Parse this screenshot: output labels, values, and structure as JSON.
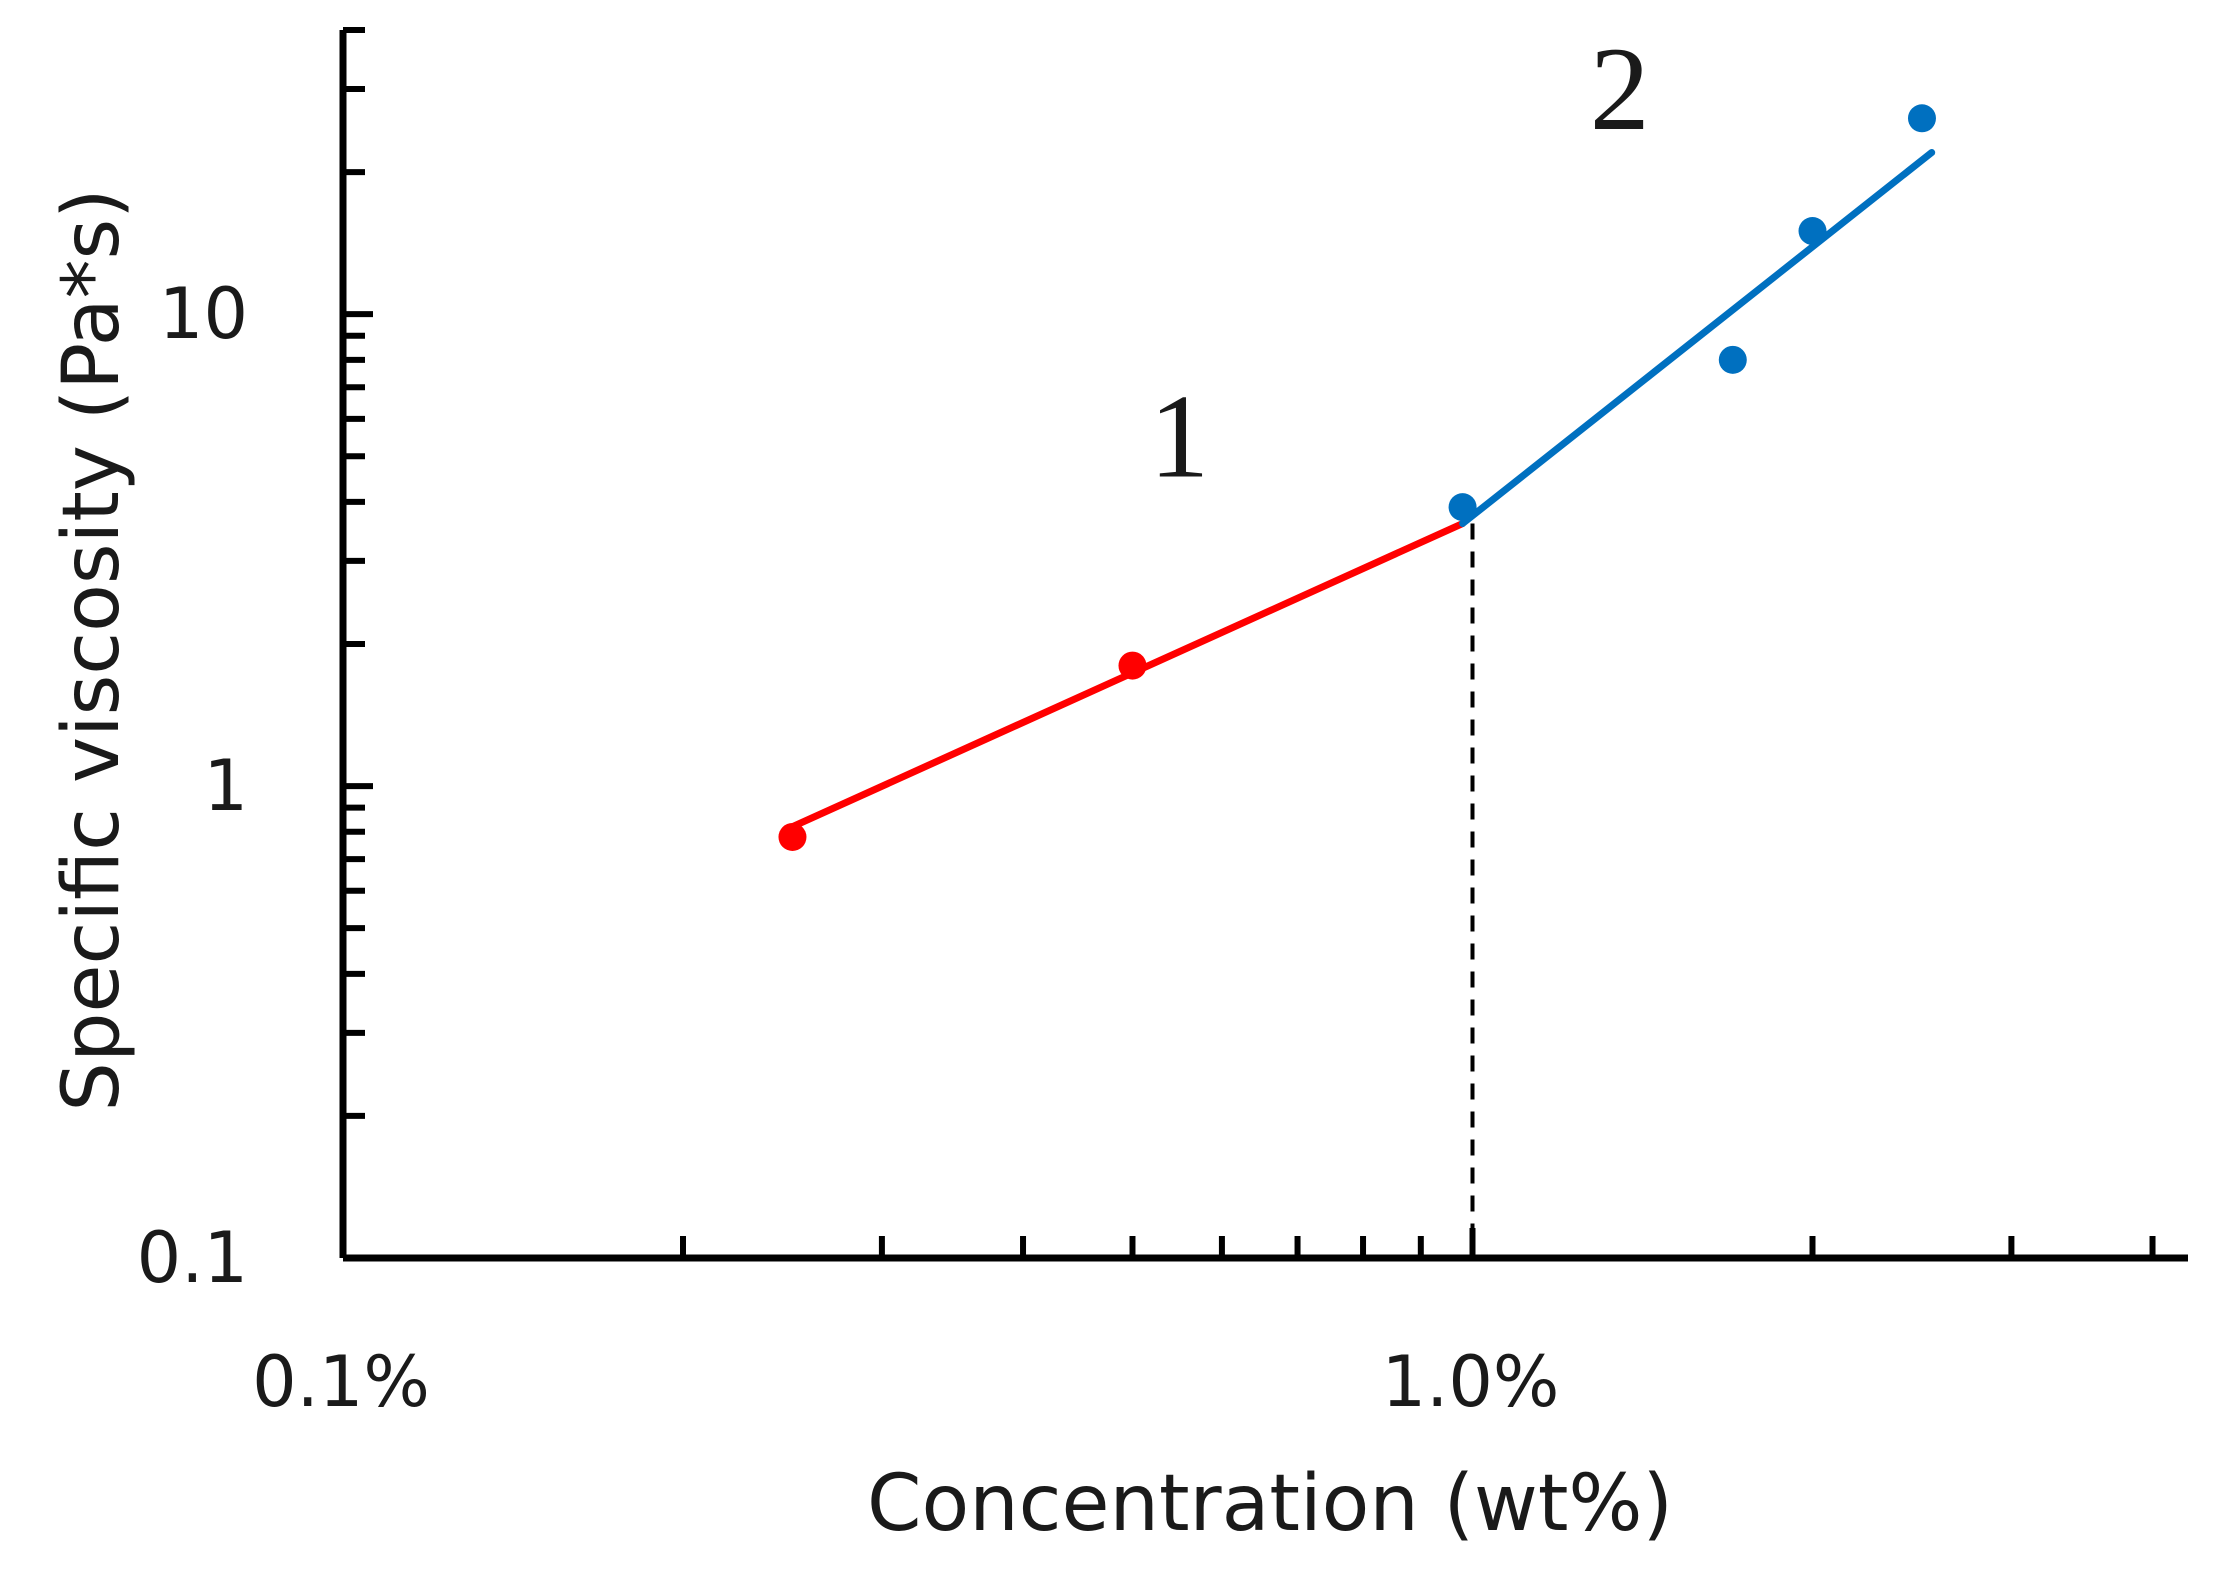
{
  "chart_data": {
    "type": "scatter",
    "title": "",
    "xlabel": "Concentration (wt%)",
    "ylabel": "Specific viscosity (Pa*s)",
    "x_scale": "log",
    "y_scale": "log",
    "xlim": [
      0.1,
      4.3
    ],
    "ylim": [
      0.1,
      40
    ],
    "x_ticks": [
      {
        "value": 0.1,
        "label": "0.1%"
      },
      {
        "value": 1.0,
        "label": "1.0%"
      }
    ],
    "y_ticks": [
      {
        "value": 0.1,
        "label": "0.1"
      },
      {
        "value": 1,
        "label": "1"
      },
      {
        "value": 10,
        "label": "10"
      }
    ],
    "grid": false,
    "series": [
      {
        "color": "#ff0000",
        "points": [
          {
            "x": 0.25,
            "y": 0.78
          },
          {
            "x": 0.5,
            "y": 1.8
          }
        ],
        "fit": [
          {
            "x": 0.25,
            "y": 0.82
          },
          {
            "x": 0.98,
            "y": 3.6
          }
        ]
      },
      {
        "color": "#0070c0",
        "points": [
          {
            "x": 0.98,
            "y": 3.9
          },
          {
            "x": 1.7,
            "y": 8.0
          },
          {
            "x": 2.0,
            "y": 15
          },
          {
            "x": 2.5,
            "y": 26
          }
        ],
        "fit": [
          {
            "x": 0.98,
            "y": 3.6
          },
          {
            "x": 2.55,
            "y": 22
          }
        ]
      }
    ],
    "reference_line": {
      "x": 1.0,
      "style": "dashed",
      "color": "#000000"
    },
    "annotations": [
      {
        "text": "1",
        "x": 0.55,
        "y": 5.5
      },
      {
        "text": "2",
        "x": 1.35,
        "y": 30
      }
    ]
  }
}
